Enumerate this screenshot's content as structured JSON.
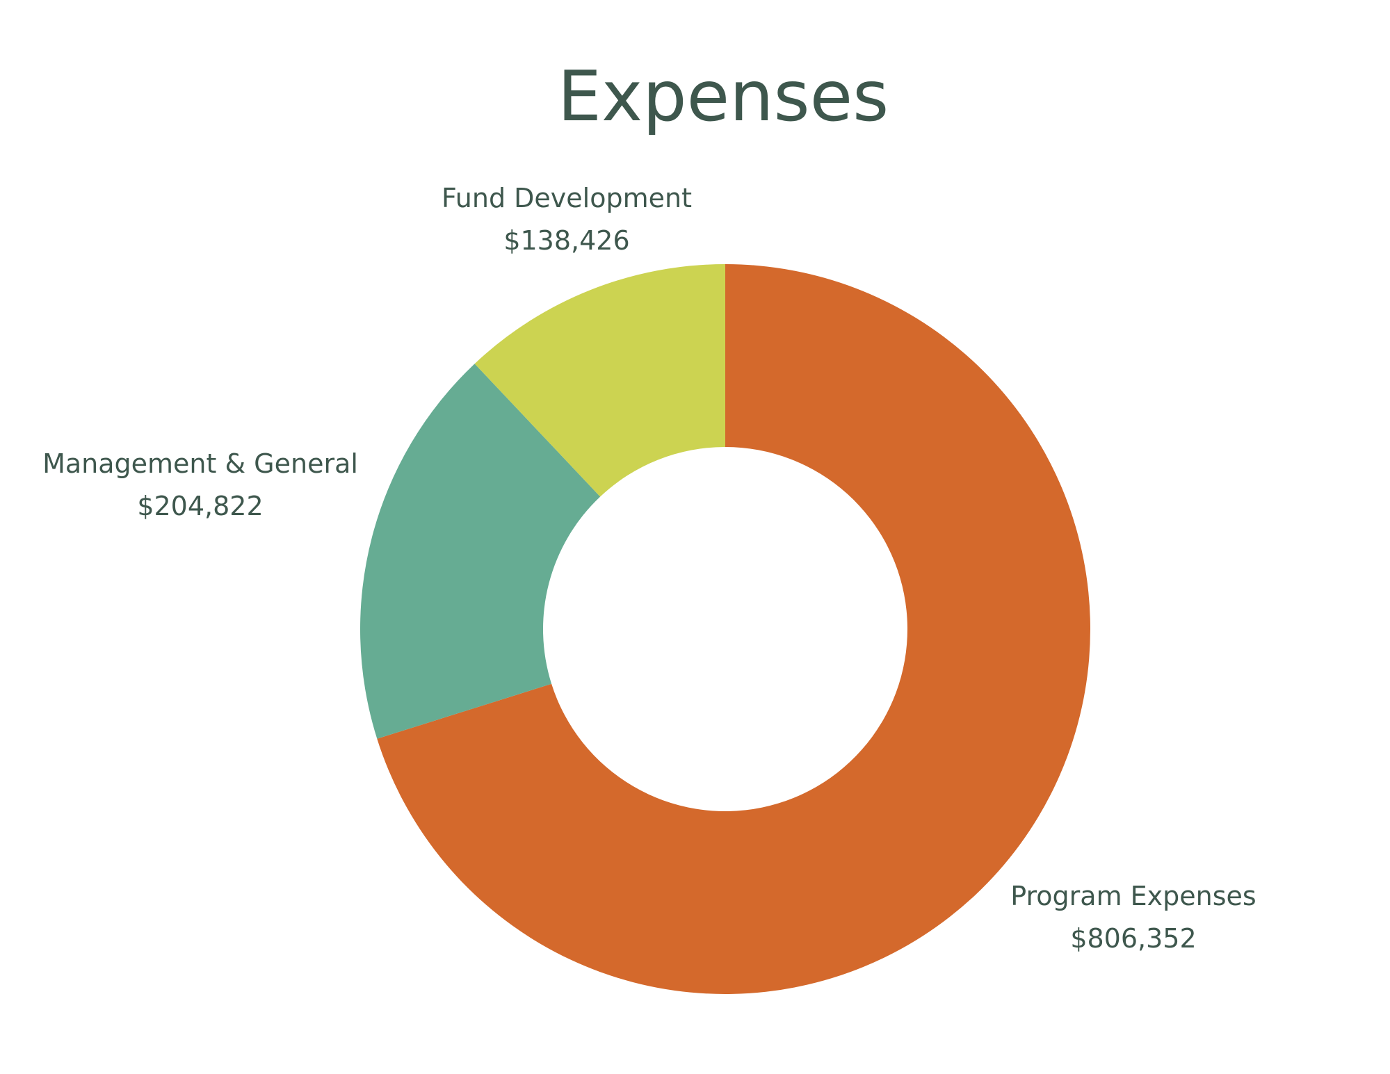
{
  "chart_data": {
    "type": "pie",
    "variant": "donut",
    "title": "Expenses",
    "slices": [
      {
        "name": "Program Expenses",
        "value": 806352,
        "value_label": "$806,352",
        "color": "#d4692c"
      },
      {
        "name": "Management & General",
        "value": 204822,
        "value_label": "$204,822",
        "color": "#66ac93"
      },
      {
        "name": "Fund Development",
        "value": 138426,
        "value_label": "$138,426",
        "color": "#ccd351"
      }
    ],
    "start_angle": "12 o'clock",
    "direction": "clockwise",
    "legend": "none",
    "labels": "outside"
  }
}
